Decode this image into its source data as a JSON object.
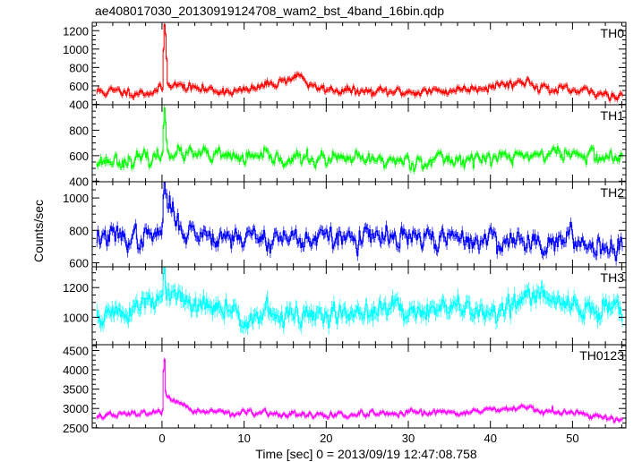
{
  "chart_data": {
    "type": "line",
    "title": "ae408017030_20130919124708_wam2_bst_4band_16bin.qdp",
    "xlabel": "Time [sec] 0 = 2013/09/19 12:47:08.758",
    "ylabel": "Counts/sec",
    "xlim": [
      -8.5,
      56.5
    ],
    "x_major_ticks": [
      0,
      10,
      20,
      30,
      40,
      50
    ],
    "bin_width": 0.125,
    "burst_time": 0.2,
    "panels": [
      {
        "name": "TH0",
        "color": "#ff0000",
        "ylim": [
          395,
          1290
        ],
        "yticks": [
          400,
          600,
          800,
          1000,
          1200
        ],
        "baseline": 520,
        "noise": 38,
        "error": 30,
        "seed": 11,
        "keypoints": [
          [
            -8,
            540
          ],
          [
            -2,
            530
          ],
          [
            0.0,
            560
          ],
          [
            0.2,
            1260
          ],
          [
            0.35,
            1230
          ],
          [
            0.6,
            650
          ],
          [
            2,
            600
          ],
          [
            5,
            560
          ],
          [
            10,
            540
          ],
          [
            17,
            720
          ],
          [
            18,
            580
          ],
          [
            25,
            530
          ],
          [
            34,
            540
          ],
          [
            44.5,
            650
          ],
          [
            47,
            560
          ],
          [
            56,
            500
          ]
        ]
      },
      {
        "name": "TH1",
        "color": "#00ff00",
        "ylim": [
          395,
          1000
        ],
        "yticks": [
          400,
          600,
          800
        ],
        "baseline": 560,
        "noise": 45,
        "error": 25,
        "seed": 23,
        "keypoints": [
          [
            -8,
            560
          ],
          [
            -2,
            570
          ],
          [
            0.0,
            600
          ],
          [
            0.2,
            980
          ],
          [
            0.35,
            900
          ],
          [
            0.6,
            660
          ],
          [
            2,
            610
          ],
          [
            10,
            580
          ],
          [
            20,
            570
          ],
          [
            30,
            560
          ],
          [
            40,
            580
          ],
          [
            48,
            620
          ],
          [
            56,
            580
          ]
        ]
      },
      {
        "name": "TH2",
        "color": "#0000ff",
        "ylim": [
          575,
          1100
        ],
        "yticks": [
          600,
          800,
          1000
        ],
        "baseline": 740,
        "noise": 55,
        "error": 30,
        "seed": 37,
        "keypoints": [
          [
            -8,
            760
          ],
          [
            -2,
            750
          ],
          [
            0.0,
            790
          ],
          [
            0.2,
            1090
          ],
          [
            0.5,
            1000
          ],
          [
            1.5,
            880
          ],
          [
            3,
            790
          ],
          [
            10,
            760
          ],
          [
            20,
            750
          ],
          [
            30,
            750
          ],
          [
            40,
            740
          ],
          [
            50,
            730
          ],
          [
            56,
            700
          ]
        ]
      },
      {
        "name": "TH3",
        "color": "#00ffff",
        "ylim": [
          815,
          1340
        ],
        "yticks": [
          1000,
          1200
        ],
        "baseline": 1040,
        "noise": 60,
        "error": 45,
        "seed": 51,
        "keypoints": [
          [
            -8,
            1000
          ],
          [
            -2,
            1080
          ],
          [
            0.0,
            1120
          ],
          [
            0.2,
            1330
          ],
          [
            0.5,
            1150
          ],
          [
            3,
            1090
          ],
          [
            10,
            1020
          ],
          [
            18,
            1000
          ],
          [
            30,
            1060
          ],
          [
            40,
            1040
          ],
          [
            46,
            1150
          ],
          [
            50,
            1060
          ],
          [
            56,
            1050
          ]
        ]
      },
      {
        "name": "TH0123",
        "color": "#ff00ff",
        "ylim": [
          2495,
          4650
        ],
        "yticks": [
          2500,
          3000,
          3500,
          4000,
          4500
        ],
        "baseline": 2850,
        "noise": 65,
        "error": 55,
        "seed": 67,
        "keypoints": [
          [
            -8,
            2800
          ],
          [
            -2,
            2880
          ],
          [
            0.0,
            2950
          ],
          [
            0.2,
            4600
          ],
          [
            0.4,
            3300
          ],
          [
            1.5,
            3100
          ],
          [
            4,
            2950
          ],
          [
            10,
            2870
          ],
          [
            20,
            2820
          ],
          [
            30,
            2850
          ],
          [
            44.5,
            2990
          ],
          [
            50,
            2860
          ],
          [
            56,
            2740
          ]
        ]
      }
    ]
  }
}
